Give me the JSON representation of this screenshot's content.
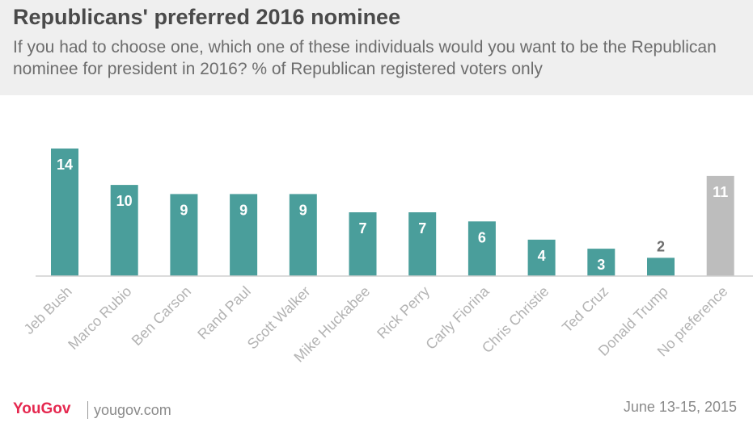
{
  "chart_data": {
    "type": "bar",
    "title": "Republicans' preferred 2016 nominee",
    "subtitle": "If you had to choose one, which one of these individuals would you want to be the Republican nominee for president in 2016? % of Republican registered voters only",
    "categories": [
      "Jeb Bush",
      "Marco Rubio",
      "Ben Carson",
      "Rand Paul",
      "Scott Walker",
      "Mike Huckabee",
      "Rick Perry",
      "Carly Fiorina",
      "Chris Christie",
      "Ted Cruz",
      "Donald Trump",
      "No preference"
    ],
    "values": [
      14,
      10,
      9,
      9,
      9,
      7,
      7,
      6,
      4,
      3,
      2,
      11
    ],
    "bar_colors": [
      "#4a9e9b",
      "#4a9e9b",
      "#4a9e9b",
      "#4a9e9b",
      "#4a9e9b",
      "#4a9e9b",
      "#4a9e9b",
      "#4a9e9b",
      "#4a9e9b",
      "#4a9e9b",
      "#4a9e9b",
      "#bdbdbd"
    ],
    "ylim": [
      0,
      14
    ],
    "grid": false,
    "legend": "none",
    "xlabel": "",
    "ylabel": ""
  },
  "footer": {
    "logo_you": "You",
    "logo_gov": "Gov",
    "url": "yougov.com",
    "date": "June 13-15, 2015"
  },
  "colors": {
    "accent": "#4a9e9b",
    "neutral_bar": "#bdbdbd",
    "brand": "#e5284f"
  }
}
